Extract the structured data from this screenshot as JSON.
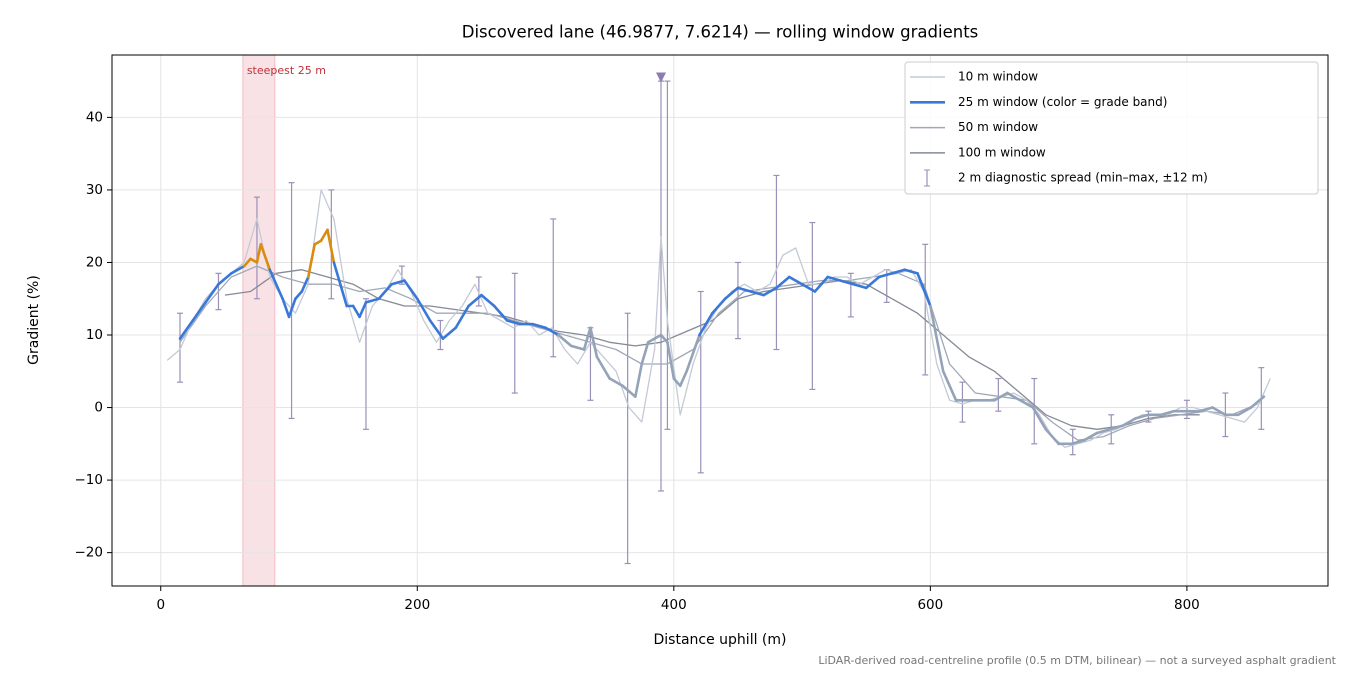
{
  "chart_data": {
    "type": "line",
    "title": "Discovered lane (46.9877, 7.6214) — rolling window gradients",
    "xlabel": "Distance uphill (m)",
    "ylabel": "Gradient (%)",
    "footnote": "LiDAR-derived road-centreline profile (0.5 m DTM, bilinear) — not a surveyed asphalt gradient",
    "xlim": [
      -38,
      910
    ],
    "ylim": [
      -24.6,
      48.6
    ],
    "xticks": [
      0,
      200,
      400,
      600,
      800
    ],
    "yticks": [
      {
        "value": -20,
        "label": "−20"
      },
      {
        "value": -10,
        "label": "−10"
      },
      0,
      10,
      20,
      30,
      40
    ],
    "grid": true,
    "legend": "upper right",
    "series": [
      {
        "name": "10 m window",
        "color": "#c3cad5",
        "x": [
          5,
          15,
          25,
          35,
          45,
          55,
          65,
          75,
          85,
          95,
          105,
          115,
          125,
          135,
          145,
          155,
          165,
          175,
          185,
          195,
          205,
          215,
          225,
          235,
          245,
          255,
          265,
          275,
          285,
          295,
          305,
          315,
          325,
          335,
          345,
          355,
          365,
          375,
          385,
          390,
          395,
          405,
          415,
          425,
          435,
          445,
          455,
          465,
          475,
          485,
          495,
          505,
          515,
          525,
          535,
          545,
          555,
          565,
          575,
          585,
          595,
          605,
          615,
          625,
          635,
          645,
          655,
          665,
          675,
          685,
          695,
          705,
          715,
          725,
          735,
          745,
          755,
          765,
          775,
          785,
          795,
          805,
          815,
          825,
          835,
          845,
          855,
          865
        ],
        "values": [
          6.5,
          8,
          12,
          15,
          17,
          18.5,
          20,
          26,
          18,
          15,
          13,
          17,
          30,
          26,
          15,
          9,
          14,
          16,
          19,
          16,
          12,
          9,
          12,
          14,
          17,
          13,
          12,
          11,
          12,
          10,
          11,
          8,
          6,
          9,
          7,
          5,
          0,
          -2,
          8,
          23.5,
          12,
          -1,
          6,
          11,
          14,
          16,
          17,
          16,
          17,
          21,
          22,
          17,
          17,
          18,
          18,
          17,
          18,
          19,
          18.5,
          19,
          16,
          6,
          1,
          0.5,
          1,
          1,
          1.5,
          2,
          1,
          -1,
          -4,
          -5.5,
          -5,
          -4.5,
          -3.5,
          -3,
          -2,
          -1,
          -1,
          -1,
          0,
          0,
          -0.5,
          -1,
          -1.5,
          -2,
          0,
          4
        ]
      },
      {
        "name": "25 m window (color = grade band)",
        "color": "#3a78d8",
        "width": 2.6,
        "color_bands": [
          [
            20,
            "#d98c10"
          ],
          [
            10,
            "#3a78d8"
          ]
        ],
        "below_color": "#94a3b8",
        "x": [
          15,
          25,
          35,
          45,
          55,
          65,
          70,
          75,
          78,
          85,
          95,
          100,
          105,
          110,
          115,
          120,
          125,
          130,
          135,
          140,
          145,
          150,
          155,
          160,
          170,
          180,
          190,
          200,
          210,
          220,
          230,
          240,
          250,
          260,
          270,
          280,
          290,
          300,
          310,
          320,
          330,
          335,
          340,
          350,
          360,
          370,
          375,
          380,
          390,
          395,
          400,
          405,
          410,
          420,
          430,
          440,
          450,
          460,
          470,
          480,
          490,
          500,
          510,
          520,
          530,
          540,
          550,
          560,
          570,
          580,
          590,
          600,
          610,
          620,
          630,
          640,
          650,
          660,
          670,
          680,
          690,
          700,
          710,
          720,
          730,
          740,
          750,
          760,
          770,
          780,
          790,
          800,
          810,
          820,
          830,
          840,
          850,
          860
        ],
        "values": [
          9.5,
          12,
          14.5,
          17,
          18.5,
          19.5,
          20.5,
          20,
          22.5,
          19,
          15,
          12.5,
          15,
          16,
          18,
          22.5,
          23,
          24.5,
          20,
          17,
          14,
          14,
          12.5,
          14.5,
          15,
          17,
          17.5,
          15,
          12,
          9.5,
          11,
          14,
          15.5,
          14,
          12,
          11.5,
          11.5,
          11,
          10,
          8.5,
          8,
          11,
          7,
          4,
          3,
          1.5,
          6,
          9,
          10,
          9,
          4,
          3,
          5,
          10,
          13,
          15,
          16.5,
          16,
          15.5,
          16.5,
          18,
          17,
          16,
          18,
          17.5,
          17,
          16.5,
          18,
          18.5,
          19,
          18.5,
          14,
          5,
          1,
          1,
          1,
          1,
          2,
          1,
          0,
          -3,
          -5,
          -5,
          -4.5,
          -3.5,
          -3,
          -2.5,
          -1.5,
          -1,
          -1,
          -0.5,
          -0.5,
          -0.5,
          0,
          -1,
          -1,
          0,
          1.5
        ]
      },
      {
        "name": "50 m window",
        "color": "#a0a8b8",
        "x": [
          15,
          35,
          55,
          75,
          95,
          115,
          135,
          155,
          175,
          195,
          215,
          235,
          255,
          275,
          295,
          315,
          335,
          355,
          375,
          395,
          415,
          435,
          455,
          475,
          495,
          515,
          535,
          555,
          575,
          595,
          615,
          635,
          655,
          675,
          695,
          715,
          735,
          755,
          775,
          795,
          815,
          835,
          855
        ],
        "values": [
          9,
          14,
          18,
          19.5,
          18,
          17,
          17,
          16,
          16.5,
          15,
          13,
          13,
          13,
          12,
          11,
          10,
          9,
          8,
          6,
          6,
          8,
          13,
          16,
          16.5,
          17,
          17.5,
          17.5,
          18,
          18.5,
          17,
          6,
          2,
          1.5,
          1,
          -2,
          -4.5,
          -4,
          -2.5,
          -1.5,
          -1,
          -0.5,
          -1,
          0.5
        ]
      },
      {
        "name": "100 m window",
        "color": "#848a96",
        "x": [
          50,
          70,
          90,
          110,
          130,
          150,
          170,
          190,
          210,
          230,
          250,
          270,
          290,
          310,
          330,
          350,
          370,
          390,
          410,
          430,
          450,
          470,
          490,
          510,
          530,
          550,
          570,
          590,
          610,
          630,
          650,
          670,
          690,
          710,
          730,
          750,
          770,
          790,
          810
        ],
        "values": [
          15.5,
          16,
          18.5,
          19,
          18,
          17,
          15,
          14,
          14,
          13.5,
          13,
          12.5,
          11.5,
          10.5,
          10,
          9,
          8.5,
          9,
          10.5,
          12,
          15,
          16,
          16.5,
          17,
          17.5,
          17,
          15,
          13,
          10,
          7,
          5,
          2,
          -1,
          -2.5,
          -3,
          -2.5,
          -1.5,
          -1,
          -1
        ]
      }
    ],
    "errorbars": {
      "name": "2 m diagnostic spread (min–max, ±12 m)",
      "color": "#9a90b8",
      "x": [
        15,
        45,
        75,
        102,
        133,
        160,
        188,
        218,
        248,
        276,
        306,
        335,
        364,
        390,
        395,
        421,
        450,
        480,
        508,
        538,
        566,
        596,
        625,
        653,
        681,
        711,
        741,
        770,
        800,
        830,
        858
      ],
      "low": [
        3.5,
        13.5,
        15,
        -1.5,
        15,
        -3,
        17,
        8,
        14,
        2,
        7,
        1,
        -21.5,
        -11.5,
        -3,
        -9,
        9.5,
        8,
        2.5,
        12.5,
        14.5,
        4.5,
        -2,
        -0.5,
        -5,
        -6.5,
        -5,
        -2,
        -1.5,
        -4,
        -3
      ],
      "high": [
        13,
        18.5,
        29,
        31,
        30,
        15,
        19.5,
        12,
        18,
        18.5,
        26,
        11,
        13,
        45,
        45,
        16,
        20,
        32,
        25.5,
        18.5,
        19,
        22.5,
        3.5,
        4,
        4,
        -3,
        -1,
        -0.5,
        1,
        2,
        5.5
      ]
    },
    "marker": {
      "x": 390,
      "y": 45.5,
      "color": "#8e7cb0"
    },
    "span": {
      "from": 64,
      "to": 89,
      "label": "steepest 25 m",
      "color": "#e06070"
    }
  }
}
